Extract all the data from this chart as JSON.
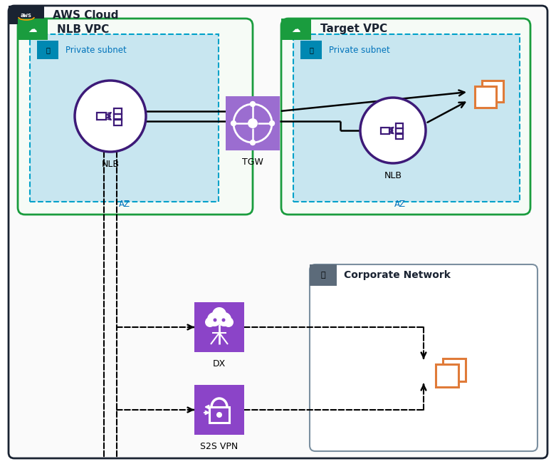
{
  "aws_cloud_label": "AWS Cloud",
  "nlb_vpc_label": "NLB VPC",
  "target_vpc_label": "Target VPC",
  "corporate_network_label": "Corporate Network",
  "private_subnet_label": "Private subnet",
  "nlb_label": "NLB",
  "tgw_label": "TGW",
  "dx_label": "DX",
  "s2s_vpn_label": "S2S VPN",
  "az_label": "AZ",
  "color_green_border": "#1A9C3E",
  "color_dashed_border": "#00A1C9",
  "color_subnet_fill": "#C8E6F0",
  "color_purple_dark": "#3D1A78",
  "color_orange": "#E07B39",
  "color_purple_tgw": "#8B5CF6",
  "color_purple_dx": "#7B3FA8",
  "color_blue_text": "#0073BB",
  "color_gray_border": "#7B8FA0",
  "color_aws_dark": "#1A2332"
}
